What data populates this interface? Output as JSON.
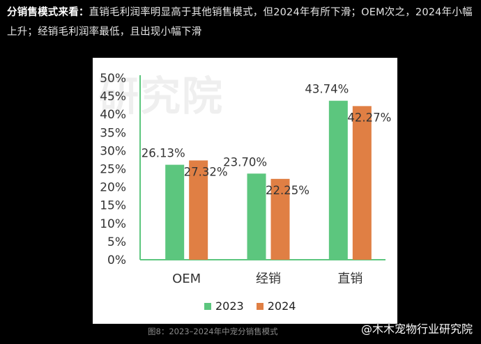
{
  "intro": {
    "heading": "分销售模式来看：",
    "text": "直销毛利润率明显高于其他销售模式，但2024年有所下滑；OEM次之，2024年小幅上升；经销毛利润率最低，且出现小幅下滑"
  },
  "watermark": "研究院",
  "caption": "图8：2023–2024年中宠分销售模式",
  "credit": "@木木宠物行业研究院",
  "colors": {
    "s2023": "#5cc67e",
    "s2024": "#e07f44"
  },
  "chart_data": {
    "type": "bar",
    "categories": [
      "OEM",
      "经销",
      "直销"
    ],
    "series": [
      {
        "name": "2023",
        "values": [
          26.13,
          23.7,
          43.74
        ],
        "labels": [
          "26.13%",
          "23.70%",
          "43.74%"
        ]
      },
      {
        "name": "2024",
        "values": [
          27.32,
          22.25,
          42.27
        ],
        "labels": [
          "27.32%",
          "22.25%",
          "42.27%"
        ]
      }
    ],
    "yticks": [
      "0%",
      "5%",
      "10%",
      "15%",
      "20%",
      "25%",
      "30%",
      "35%",
      "40%",
      "45%",
      "50%"
    ],
    "ylim": [
      0,
      50
    ],
    "legend": "bottom"
  }
}
